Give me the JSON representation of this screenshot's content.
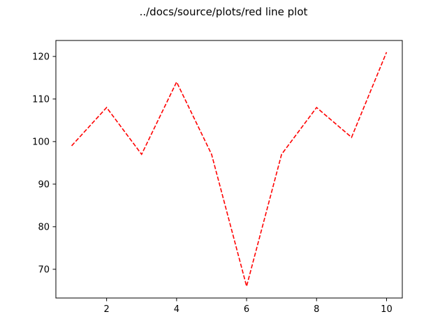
{
  "chart_data": {
    "type": "line",
    "title": "../docs/source/plots/red line plot",
    "xlabel": "",
    "ylabel": "",
    "x": [
      1,
      2,
      3,
      4,
      5,
      6,
      7,
      8,
      9,
      10
    ],
    "series": [
      {
        "values": [
          99,
          108,
          97,
          114,
          97,
          66,
          97,
          108,
          101,
          121
        ],
        "color": "#ff0000",
        "line_style": "dashed"
      }
    ],
    "xlim": [
      0.55,
      10.45
    ],
    "ylim": [
      63.25,
      123.75
    ],
    "x_ticks": [
      2,
      4,
      6,
      8,
      10
    ],
    "x_tick_labels": [
      "2",
      "4",
      "6",
      "8",
      "10"
    ],
    "y_ticks": [
      70,
      80,
      90,
      100,
      110,
      120
    ],
    "y_tick_labels": [
      "70",
      "80",
      "90",
      "100",
      "110",
      "120"
    ],
    "grid": false,
    "legend": "none"
  }
}
